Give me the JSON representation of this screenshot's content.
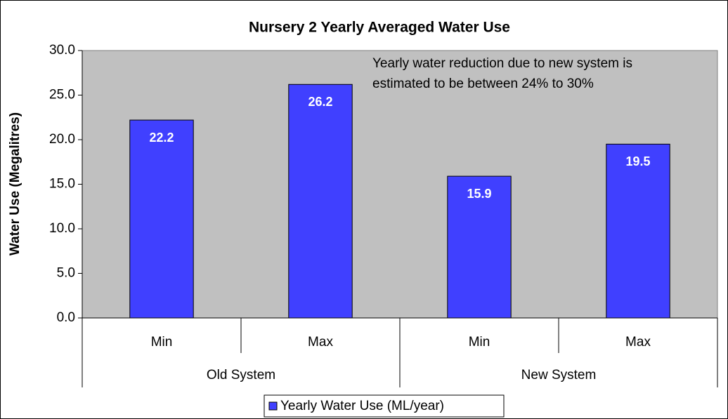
{
  "chart_data": {
    "type": "bar",
    "title": "Nursery 2 Yearly Averaged Water Use",
    "y_label": "Water Use (Megalitres)",
    "annotation": [
      "Yearly water reduction due to new system is",
      "estimated to be between 24% to 30%"
    ],
    "groups": [
      {
        "name": "Old System",
        "categories": [
          "Min",
          "Max"
        ]
      },
      {
        "name": "New System",
        "categories": [
          "Min",
          "Max"
        ]
      }
    ],
    "series": [
      {
        "name": "Yearly Water Use (ML/year)",
        "color": "#4040ff",
        "values": [
          22.2,
          26.2,
          15.9,
          19.5
        ]
      }
    ],
    "ylim": [
      0,
      30
    ],
    "yticks": [
      {
        "value": 0,
        "label": "0.0"
      },
      {
        "value": 5,
        "label": "5.0"
      },
      {
        "value": 10,
        "label": "10.0"
      },
      {
        "value": 15,
        "label": "15.0"
      },
      {
        "value": 20,
        "label": "20.0"
      },
      {
        "value": 25,
        "label": "25.0"
      },
      {
        "value": 30,
        "label": "30.0"
      }
    ],
    "grid": false,
    "legend": "bottom",
    "plot_background": "#c0c0c0"
  }
}
